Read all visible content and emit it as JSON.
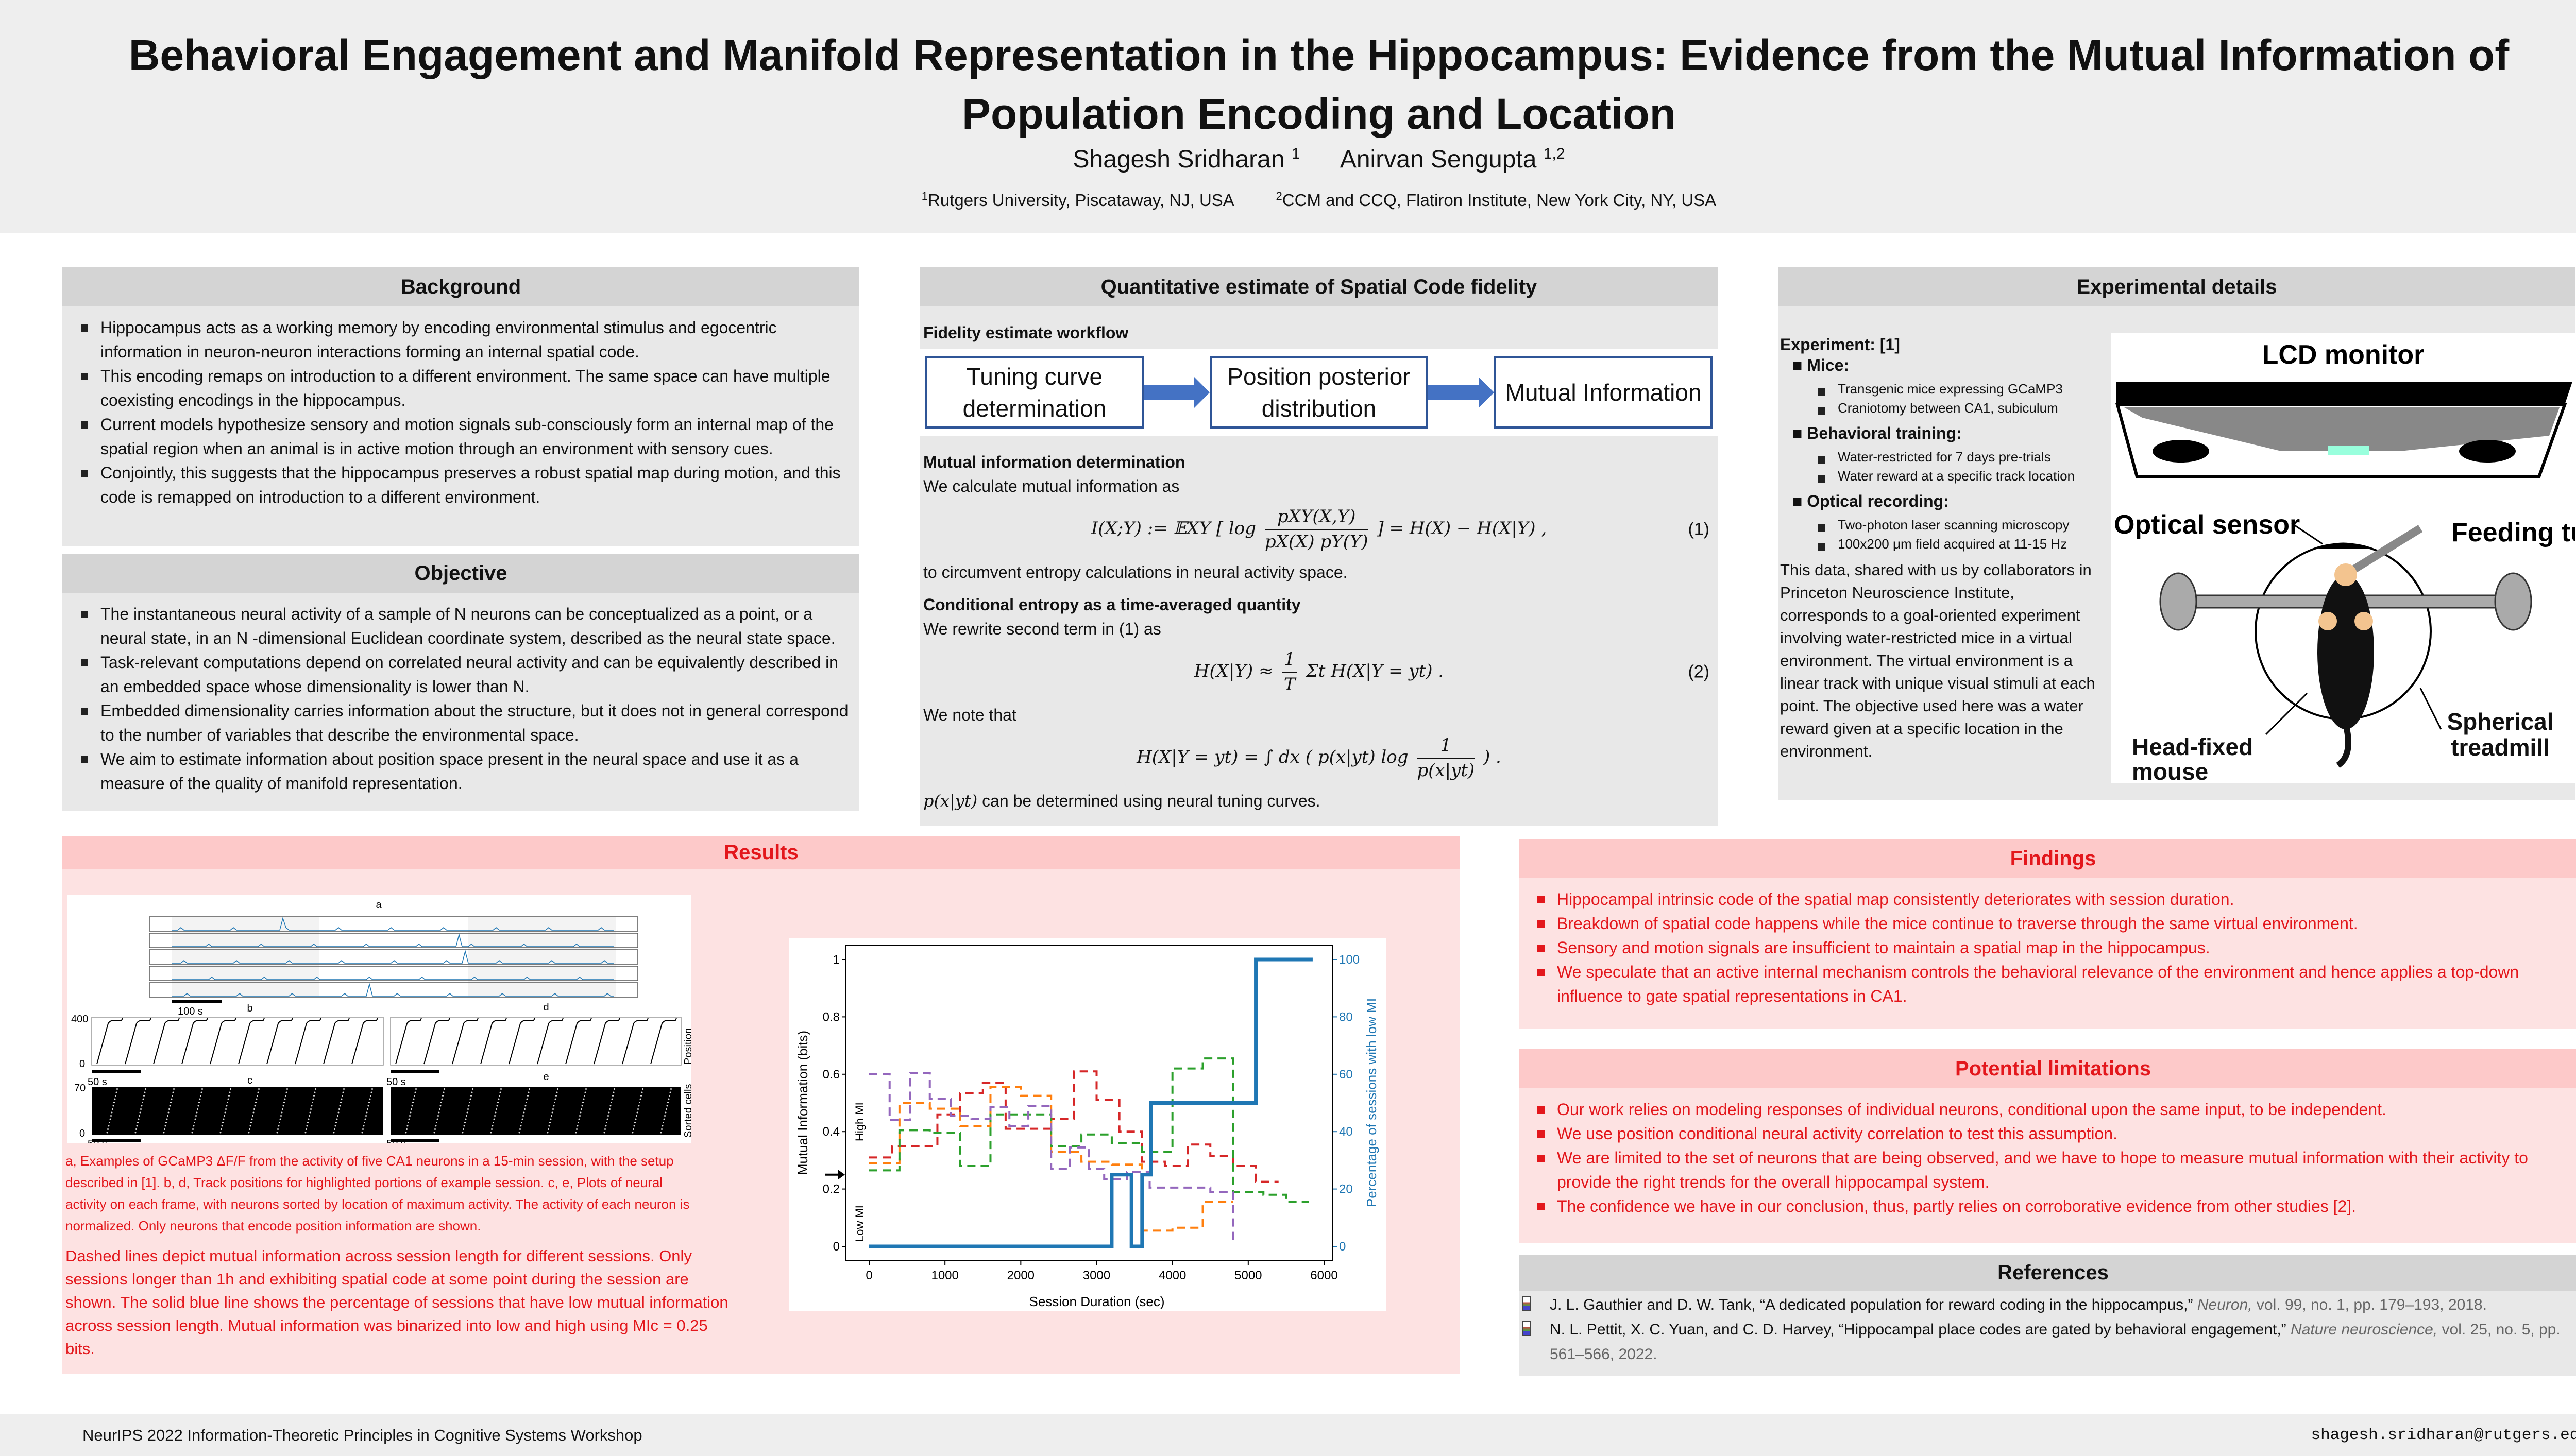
{
  "header": {
    "title": "Behavioral Engagement and Manifold Representation in the Hippocampus: Evidence from the Mutual Information of Population Encoding and Location",
    "author1": "Shagesh Sridharan",
    "author1_sup": "1",
    "author2": "Anirvan Sengupta",
    "author2_sup": "1,2",
    "affil1_sup": "1",
    "affil1": "Rutgers University, Piscataway, NJ, USA",
    "affil2_sup": "2",
    "affil2": "CCM and CCQ, Flatiron Institute, New York City, NY, USA"
  },
  "background": {
    "title": "Background",
    "items": [
      "Hippocampus acts as a working memory by encoding environmental stimulus and egocentric information in neuron-neuron interactions forming an internal spatial code.",
      "This encoding remaps on introduction to a different environment. The same space can have multiple coexisting encodings in the hippocampus.",
      "Current models hypothesize sensory and motion signals sub-consciously form an internal map of the spatial region when an animal is in active motion through an environment with sensory cues.",
      "Conjointly, this suggests that the hippocampus preserves a robust spatial map during motion, and this code is remapped on introduction to a different environment."
    ]
  },
  "objective": {
    "title": "Objective",
    "items": [
      "The instantaneous neural activity of a sample of N neurons can be conceptualized as a point, or a neural state, in an N -dimensional Euclidean coordinate system, described as the neural state space.",
      "Task-relevant computations depend on correlated neural activity and can be equivalently described in an embedded space whose dimensionality is lower than N.",
      "Embedded dimensionality carries information about the structure, but it does not in general correspond to the number of variables that describe the environmental space.",
      "We aim to estimate information about position space present in the neural space and use it as a measure of the quality of manifold representation."
    ]
  },
  "quant": {
    "title": "Quantitative estimate of Spatial Code fidelity",
    "workflow_title": "Fidelity estimate workflow",
    "workflow": [
      "Tuning curve determination",
      "Position posterior distribution",
      "Mutual Information"
    ],
    "mi_title": "Mutual information determination",
    "mi_intro": "We calculate mutual information as",
    "eq1": {
      "lhs": "I(X;Y) := 𝔼XY [ log",
      "num": "pXY(X,Y)",
      "den": "pX(X) pY(Y)",
      "rhs": "] = H(X) − H(X|Y)  ,",
      "label": "(1)"
    },
    "mi_after": "to circumvent entropy calculations in neural activity space.",
    "ce_title": "Conditional entropy as a time-averaged quantity",
    "ce_intro": "We rewrite second term in (1) as",
    "eq2": {
      "lhs": "H(X|Y) ≈",
      "num": "1",
      "den": "T",
      "rhs": "Σt H(X|Y = yt)  .",
      "label": "(2)"
    },
    "note": "We note that",
    "eq3": {
      "lhs": "H(X|Y = yt) = ∫ dx ( p(x|yt) log",
      "num": "1",
      "den": "p(x|yt)",
      "rhs": ") ."
    },
    "final_math": "p(x|yt)",
    "final": " can be determined using neural tuning curves."
  },
  "experimental": {
    "title": "Experimental details",
    "experiment_label": "Experiment: [1]",
    "groups": [
      {
        "label": "Mice:",
        "items": [
          "Transgenic mice expressing GCaMP3",
          "Craniotomy between CA1, subiculum"
        ]
      },
      {
        "label": "Behavioral training:",
        "items": [
          "Water-restricted for 7 days pre-trials",
          "Water reward at a specific track location"
        ]
      },
      {
        "label": "Optical recording:",
        "items": [
          "Two-photon laser scanning microscopy",
          "100x200 μm field acquired at 11-15 Hz"
        ]
      }
    ],
    "description": "This data, shared with us by collaborators in Princeton Neuroscience Institute, corresponds to a goal-oriented experiment involving water-restricted mice in a virtual environment. The virtual environment is a linear track with unique visual stimuli at each point. The objective used here was a water reward given at a specific location in the environment.",
    "figure": {
      "lcd": "LCD monitor",
      "optical": "Optical sensor",
      "feeding": "Feeding tube",
      "headfixed": "Head-fixed mouse",
      "treadmill": "Spherical treadmill"
    }
  },
  "results": {
    "title": "Results",
    "neural_fig": {
      "a": "a",
      "b": "b",
      "c": "c",
      "d": "d",
      "e": "e",
      "scale100": "100 s",
      "scale50": "50 s",
      "y400": "400",
      "y0": "0",
      "y70": "70",
      "position": "Position",
      "sorted": "Sorted cells"
    },
    "caption_small": "a, Examples of GCaMP3 ΔF/F from the activity of five CA1 neurons in a 15-min session, with the setup described in [1]. b, d, Track positions for highlighted portions of example session. c, e, Plots of neural activity on each frame, with neurons sorted by location of maximum activity. The activity of each neuron is normalized. Only neurons that encode position information are shown.",
    "caption_large": "Dashed lines depict mutual information across session length for different sessions. Only sessions longer than 1h and exhibiting spatial code at some point during the session are shown. The solid blue line shows the percentage of sessions that have low mutual information across session length. Mutual information was binarized into low and high using MIc = 0.25 bits."
  },
  "chart_data": {
    "type": "line",
    "xlabel": "Session Duration (sec)",
    "ylabel": "Mutual Information (bits)",
    "y2label": "Percentage of sessions with low MI",
    "xlim": [
      -300,
      6150
    ],
    "ylim": [
      -0.05,
      1.05
    ],
    "y2lim": [
      -5,
      105
    ],
    "xticks": [
      0,
      1000,
      2000,
      3000,
      4000,
      5000,
      6000
    ],
    "yticks": [
      0,
      0.2,
      0.4,
      0.6,
      0.8,
      1
    ],
    "yticklabels": [
      "0",
      "0.2",
      "0.4",
      "0.6",
      "0.8",
      "1"
    ],
    "y2ticks": [
      0,
      20,
      40,
      60,
      80,
      100
    ],
    "annotations": {
      "high": "High MI",
      "low": "Low MI",
      "threshold": 0.25
    },
    "series": [
      {
        "name": "session-red",
        "style": "dashed",
        "color": "#d62728",
        "steps": [
          [
            0,
            0.31
          ],
          [
            300,
            0.35
          ],
          [
            900,
            0.46
          ],
          [
            1200,
            0.535
          ],
          [
            1500,
            0.57
          ],
          [
            1800,
            0.41
          ],
          [
            2400,
            0.445
          ],
          [
            2700,
            0.61
          ],
          [
            3000,
            0.51
          ],
          [
            3300,
            0.4
          ],
          [
            3600,
            0.295
          ],
          [
            3900,
            0.28
          ],
          [
            4200,
            0.355
          ],
          [
            4500,
            0.315
          ],
          [
            4800,
            0.28
          ],
          [
            5100,
            0.225
          ]
        ],
        "end": 5400
      },
      {
        "name": "session-orange",
        "style": "dashed",
        "color": "#ff7f0e",
        "steps": [
          [
            0,
            0.29
          ],
          [
            400,
            0.5
          ],
          [
            800,
            0.48
          ],
          [
            1200,
            0.42
          ],
          [
            1600,
            0.555
          ],
          [
            2000,
            0.525
          ],
          [
            2400,
            0.33
          ],
          [
            2800,
            0.295
          ],
          [
            3200,
            0.285
          ],
          [
            3600,
            0.055
          ],
          [
            4000,
            0.065
          ],
          [
            4400,
            0.155
          ]
        ],
        "end": 4800
      },
      {
        "name": "session-green",
        "style": "dashed",
        "color": "#2ca02c",
        "steps": [
          [
            0,
            0.265
          ],
          [
            400,
            0.405
          ],
          [
            800,
            0.395
          ],
          [
            1200,
            0.28
          ],
          [
            1600,
            0.46
          ],
          [
            2400,
            0.35
          ],
          [
            2800,
            0.39
          ],
          [
            3200,
            0.36
          ],
          [
            3600,
            0.33
          ],
          [
            4000,
            0.62
          ],
          [
            4400,
            0.655
          ],
          [
            4800,
            0.19
          ],
          [
            5200,
            0.18
          ],
          [
            5500,
            0.155
          ]
        ],
        "end": 5800
      },
      {
        "name": "session-purple",
        "style": "dashed",
        "color": "#9467bd",
        "steps": [
          [
            0,
            0.6
          ],
          [
            270,
            0.44
          ],
          [
            540,
            0.605
          ],
          [
            800,
            0.515
          ],
          [
            1080,
            0.455
          ],
          [
            1350,
            0.445
          ],
          [
            1600,
            0.485
          ],
          [
            1850,
            0.42
          ],
          [
            2100,
            0.49
          ],
          [
            2400,
            0.27
          ],
          [
            2650,
            0.345
          ],
          [
            2900,
            0.27
          ],
          [
            3100,
            0.235
          ],
          [
            3400,
            0.26
          ],
          [
            3700,
            0.205
          ],
          [
            4500,
            0.19
          ],
          [
            4800,
            0.01
          ]
        ],
        "end": 4800
      },
      {
        "name": "percent-low-mi",
        "style": "solid",
        "axis": "right",
        "color": "#1f77b4",
        "steps": [
          [
            0,
            0
          ],
          [
            3200,
            25
          ],
          [
            3460,
            0
          ],
          [
            3600,
            25
          ],
          [
            3720,
            50
          ],
          [
            5100,
            100
          ]
        ],
        "end": 5850
      }
    ]
  },
  "findings": {
    "title": "Findings",
    "items": [
      "Hippocampal intrinsic code of the spatial map consistently deteriorates with session duration.",
      "Breakdown of spatial code happens while the mice continue to traverse through the same virtual environment.",
      "Sensory and motion signals are insufficient to maintain a spatial map in the hippocampus.",
      "We speculate that an active internal mechanism controls the behavioral relevance of the environment and hence applies a top-down influence to gate spatial representations in CA1."
    ]
  },
  "limitations": {
    "title": "Potential limitations",
    "items": [
      "Our work relies on modeling responses of individual neurons, conditional upon the same input, to be independent.",
      "We use position conditional neural activity correlation to test this assumption.",
      "We are limited to the set of neurons that are being observed, and we have to hope to measure mutual information with their activity to provide the right trends for the overall hippocampal system.",
      "The confidence we have in our conclusion, thus, partly relies on corroborative evidence from other studies [2]."
    ]
  },
  "references": {
    "title": "References",
    "items": [
      {
        "main": "J. L. Gauthier and D. W. Tank, “A dedicated population for reward coding in the hippocampus,”",
        "venue": "Neuron,",
        "rest": " vol. 99, no. 1, pp. 179–193, 2018."
      },
      {
        "main": "N. L. Pettit, X. C. Yuan, and C. D. Harvey, “Hippocampal place codes are gated by behavioral engagement,”",
        "venue": "Nature neuroscience,",
        "rest": " vol. 25, no. 5, pp. 561–566, 2022."
      }
    ]
  },
  "footer": {
    "venue": "NeurIPS 2022 Information-Theoretic Principles in Cognitive Systems Workshop",
    "email": "shagesh.sridharan@rutgers.edu"
  }
}
